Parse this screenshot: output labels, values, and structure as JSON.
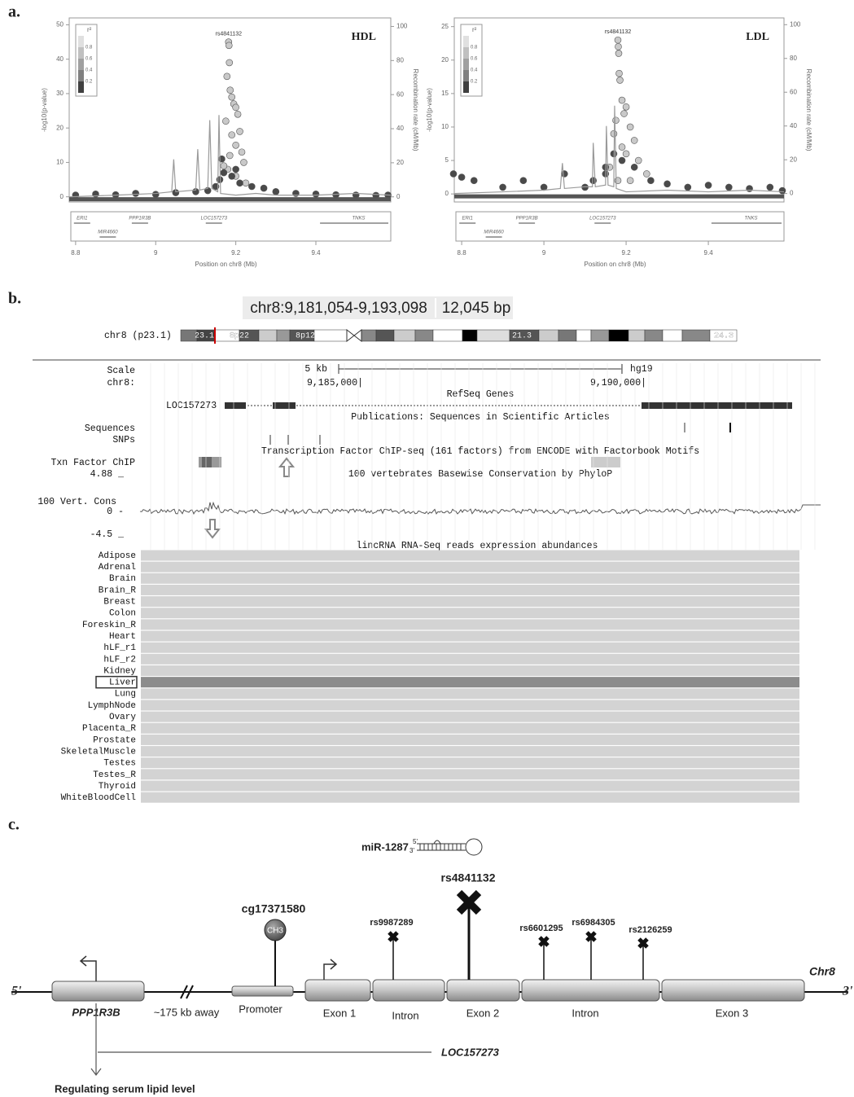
{
  "panel_labels": [
    "a.",
    "b.",
    "c."
  ],
  "chart_data": [
    {
      "type": "scatter",
      "title": "HDL",
      "annotation": "rs4841132",
      "x_label": "Position on chr8 (Mb)",
      "y_label": "-log10(p-value)",
      "y2_label": "Recombination rate (cM/Mb)",
      "xlim": [
        8.784,
        9.587
      ],
      "xticks": [
        8.8,
        9,
        9.2,
        9.4
      ],
      "ylim": [
        -1.5,
        52
      ],
      "yticks": [
        0,
        10,
        20,
        30,
        40,
        50
      ],
      "y2lim": [
        -3,
        105
      ],
      "y2ticks": [
        0,
        20,
        40,
        60,
        80,
        100
      ],
      "legend": {
        "title": "r²",
        "ticks": [
          0.8,
          0.6,
          0.4,
          0.2
        ]
      },
      "genes": [
        "ERI1",
        "PPP1R3B",
        "LOC157273",
        "TNKS",
        "MIR4660"
      ],
      "series": [
        {
          "color": "#c9c9c9",
          "x": [
            9.182,
            9.183,
            9.184,
            9.178,
            9.186,
            9.19,
            9.195,
            9.2,
            9.175,
            9.205,
            9.21,
            9.19,
            9.2,
            9.215,
            9.185,
            9.22,
            9.18,
            9.2,
            9.17,
            9.225
          ],
          "values": [
            45,
            44,
            39,
            35,
            31,
            29,
            27,
            26,
            22,
            24,
            19,
            18,
            15,
            13,
            12,
            10,
            8,
            6,
            9,
            4
          ]
        },
        {
          "color": "#4a4a4a",
          "x": [
            8.8,
            8.85,
            8.9,
            8.95,
            9.0,
            9.05,
            9.1,
            9.13,
            9.15,
            9.16,
            9.17,
            9.19,
            9.21,
            9.24,
            9.27,
            9.3,
            9.35,
            9.4,
            9.45,
            9.5,
            9.55,
            9.58,
            9.165,
            9.2
          ],
          "values": [
            0.5,
            0.8,
            0.6,
            1,
            0.7,
            1.2,
            1.5,
            1.8,
            3,
            5,
            7,
            6,
            4,
            3,
            2.5,
            1.5,
            1,
            0.8,
            0.6,
            0.5,
            0.4,
            0.5,
            11,
            8
          ]
        },
        {
          "type": "line",
          "axis": "y2",
          "color": "#9a9a9a",
          "x": [
            8.784,
            8.9,
            9.0,
            9.04,
            9.045,
            9.05,
            9.1,
            9.105,
            9.11,
            9.13,
            9.135,
            9.14,
            9.155,
            9.158,
            9.162,
            9.2,
            9.25,
            9.3,
            9.4,
            9.5,
            9.587
          ],
          "values": [
            0,
            1,
            2,
            3,
            22,
            3,
            4,
            28,
            4,
            5,
            45,
            5,
            3,
            48,
            2,
            1,
            2,
            1,
            1,
            2,
            1
          ]
        }
      ]
    },
    {
      "type": "scatter",
      "title": "LDL",
      "annotation": "rs4841132",
      "x_label": "Position on chr8 (Mb)",
      "y_label": "-log10(p-value)",
      "y2_label": "Recombination rate (cM/Mb)",
      "xlim": [
        8.782,
        9.584
      ],
      "xticks": [
        8.8,
        9,
        9.2,
        9.4
      ],
      "ylim": [
        -1.2,
        26.3
      ],
      "yticks": [
        0,
        5,
        10,
        15,
        20,
        25
      ],
      "y2lim": [
        -5,
        104
      ],
      "y2ticks": [
        0,
        20,
        40,
        60,
        80,
        100
      ],
      "legend": {
        "title": "r²",
        "ticks": [
          0.8,
          0.6,
          0.4,
          0.2
        ]
      },
      "genes": [
        "ERI1",
        "PPP1R3B",
        "LOC157273",
        "TNKS",
        "MIR4660"
      ],
      "series": [
        {
          "color": "#c9c9c9",
          "x": [
            9.18,
            9.181,
            9.182,
            9.183,
            9.185,
            9.19,
            9.2,
            9.195,
            9.175,
            9.21,
            9.17,
            9.22,
            9.19,
            9.2,
            9.23,
            9.16,
            9.25,
            9.18,
            9.21
          ],
          "values": [
            23,
            22,
            21,
            18,
            17,
            14,
            13,
            12,
            11,
            10,
            9,
            8,
            7,
            6,
            5,
            4,
            3,
            2,
            2
          ]
        },
        {
          "color": "#4a4a4a",
          "x": [
            8.78,
            8.83,
            8.9,
            8.95,
            9.0,
            9.05,
            9.1,
            9.12,
            9.15,
            9.17,
            9.19,
            9.22,
            9.26,
            9.3,
            9.35,
            9.4,
            9.45,
            9.5,
            9.55,
            9.58,
            8.8,
            9.15
          ],
          "values": [
            3,
            2,
            1,
            2,
            1,
            3,
            1,
            2,
            4,
            6,
            5,
            4,
            2,
            1.5,
            1,
            1.3,
            1,
            0.8,
            1,
            0.5,
            2.5,
            3
          ]
        },
        {
          "type": "line",
          "axis": "y2",
          "color": "#9a9a9a",
          "x": [
            8.782,
            8.9,
            9.0,
            9.04,
            9.045,
            9.05,
            9.1,
            9.118,
            9.12,
            9.125,
            9.15,
            9.152,
            9.156,
            9.17,
            9.172,
            9.176,
            9.2,
            9.3,
            9.4,
            9.5,
            9.584
          ],
          "values": [
            0,
            1,
            2,
            3,
            18,
            3,
            4,
            4,
            30,
            4,
            5,
            40,
            5,
            4,
            52,
            3,
            1,
            2,
            1,
            2,
            1
          ]
        }
      ]
    }
  ],
  "browser": {
    "position": "chr8:9,181,054-9,193,098",
    "size": "12,045 bp",
    "ideogram_label": "chr8 (p23.1)",
    "bands": [
      "23.1",
      "8p22",
      "8p12",
      "21.3",
      "24.3"
    ],
    "track_labels": [
      "Scale",
      "chr8:",
      "Sequences",
      "SNPs",
      "Txn Factor ChIP",
      "4.88 _",
      "100 Vert. Cons",
      "0 -",
      "-4.5 _"
    ],
    "scale": "5 kb",
    "assembly": "hg19",
    "coords": [
      "9,185,000|",
      "9,190,000|"
    ],
    "tracks": [
      "RefSeq Genes",
      "Publications: Sequences in Scientific Articles",
      "Transcription Factor ChIP-seq (161 factors) from ENCODE with Factorbook Motifs",
      "100 vertebrates Basewise Conservation by PhyloP",
      "lincRNA RNA-Seq reads expression abundances"
    ],
    "gene": "LOC157273",
    "tissues": [
      "Adipose",
      "Adrenal",
      "Brain",
      "Brain_R",
      "Breast",
      "Colon",
      "Foreskin_R",
      "Heart",
      "hLF_r1",
      "hLF_r2",
      "Kidney",
      "Liver",
      "Lung",
      "LymphNode",
      "Ovary",
      "Placenta_R",
      "Prostate",
      "SkeletalMuscle",
      "Testes",
      "Testes_R",
      "Thyroid",
      "WhiteBloodCell"
    ]
  },
  "diagram": {
    "mirna": "miR-1287",
    "mirna_ends": [
      "5'",
      "3'"
    ],
    "lead_snp": "rs4841132",
    "cpg": "cg17371580",
    "methyl": "CH3",
    "snps": [
      "rs9987289",
      "rs6601295",
      "rs6984305",
      "rs2126259"
    ],
    "strand": [
      "5'",
      "3'"
    ],
    "chromosome": "Chr8",
    "gene": "PPP1R3B",
    "distance": "~175 kb away",
    "segments": [
      "Promoter",
      "Exon 1",
      "Intron",
      "Exon 2",
      "Intron",
      "Exon 3"
    ],
    "lncrna": "LOC157273",
    "function": "Regulating serum lipid level"
  }
}
